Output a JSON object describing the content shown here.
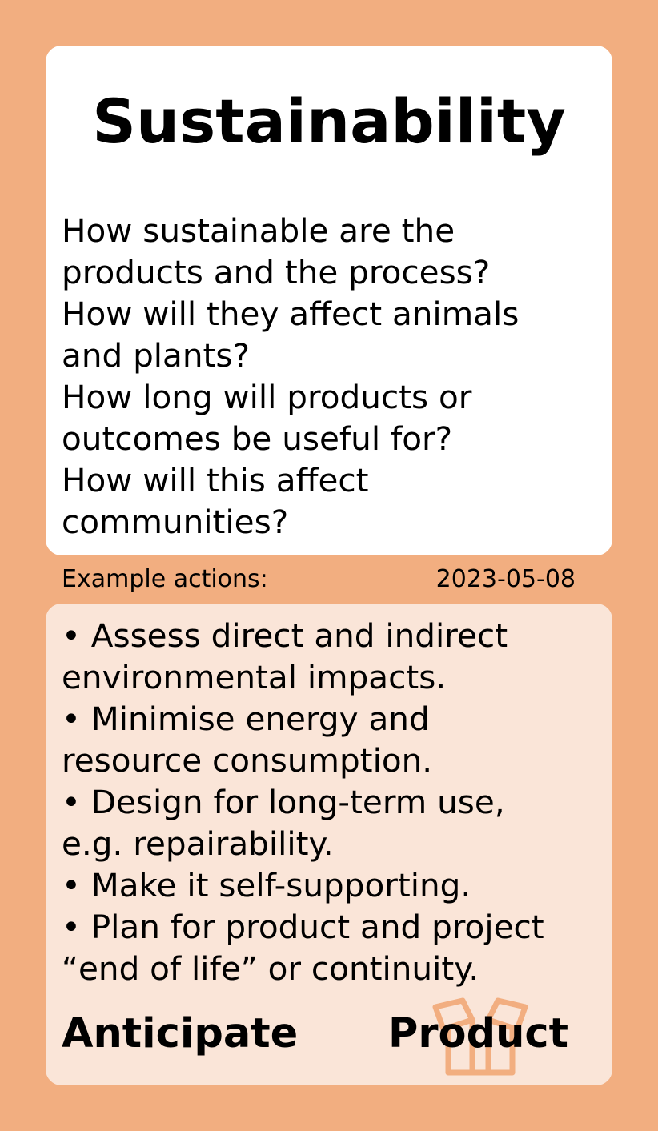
{
  "card": {
    "title": "Sustainability",
    "questions": [
      "How sustainable are the",
      "products and the process?",
      "How will they affect animals",
      "and plants?",
      "How long will products or",
      "outcomes be useful for?",
      "How will this affect",
      "communities?"
    ],
    "example_label": "Example actions:",
    "date": "2023-05-08",
    "actions": [
      "• Assess direct and indirect",
      "environmental impacts.",
      "• Minimise energy and",
      "resource consumption.",
      "• Design for long-term use,",
      "e.g. repairability.",
      "• Make it self-supporting.",
      "• Plan for product and project",
      "“end of life” or continuity."
    ],
    "phase": "Anticipate",
    "category": "Product",
    "category_icon": "gift-box-icon"
  },
  "colors": {
    "background": "#f2ae80",
    "top_card": "#ffffff",
    "bottom_card": "#fae5d8",
    "icon_stroke": "#f2ae80",
    "text": "#000000"
  }
}
